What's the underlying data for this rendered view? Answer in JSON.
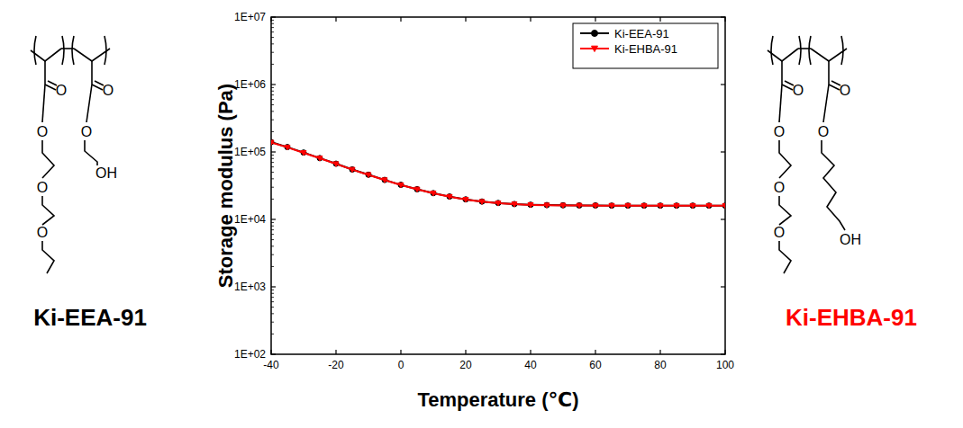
{
  "chart_data": {
    "type": "line",
    "x_label": "Temperature (℃)",
    "y_label": "Storage modulus (Pa)",
    "x": [
      -40,
      -35,
      -30,
      -25,
      -20,
      -15,
      -10,
      -5,
      0,
      5,
      10,
      15,
      20,
      25,
      30,
      35,
      40,
      45,
      50,
      55,
      60,
      65,
      70,
      75,
      80,
      85,
      90,
      95,
      100
    ],
    "series": [
      {
        "name": "Ki-EEA-91",
        "color": "#000000",
        "marker": "circle",
        "values": [
          140000,
          118000,
          98000,
          81000,
          67000,
          55000,
          46000,
          38500,
          32500,
          28000,
          24500,
          21800,
          19800,
          18400,
          17500,
          16900,
          16500,
          16300,
          16200,
          16100,
          16100,
          16000,
          16000,
          16000,
          16000,
          16000,
          16000,
          16000,
          16000
        ]
      },
      {
        "name": "Ki-EHBA-91",
        "color": "#ff0000",
        "marker": "triangle-down",
        "values": [
          138000,
          117000,
          97000,
          80500,
          66500,
          54800,
          45800,
          38300,
          32300,
          27900,
          24400,
          21700,
          19700,
          18300,
          17400,
          16800,
          16400,
          16200,
          16100,
          16050,
          16000,
          16000,
          16000,
          15950,
          15950,
          15950,
          15950,
          15950,
          15950
        ]
      }
    ],
    "xlim": [
      -40,
      100
    ],
    "xticks": [
      -40,
      -20,
      0,
      20,
      40,
      60,
      80,
      100
    ],
    "ylim": [
      100,
      10000000
    ],
    "yticks": [
      {
        "value": 100,
        "label": "1E+02"
      },
      {
        "value": 1000,
        "label": "1E+03"
      },
      {
        "value": 10000,
        "label": "1E+04"
      },
      {
        "value": 100000,
        "label": "1E+05"
      },
      {
        "value": 1000000,
        "label": "1E+06"
      },
      {
        "value": 10000000,
        "label": "1E+07"
      }
    ],
    "log": "y",
    "grid": false,
    "legend": "upper right"
  },
  "structures": [
    {
      "name": "Ki-EEA-91",
      "atoms": [
        "O",
        "O",
        "O",
        "O",
        "O",
        "O",
        "OH"
      ]
    },
    {
      "name": "Ki-EHBA-91",
      "atoms": [
        "O",
        "O",
        "O",
        "O",
        "O",
        "O",
        "OH"
      ]
    }
  ]
}
